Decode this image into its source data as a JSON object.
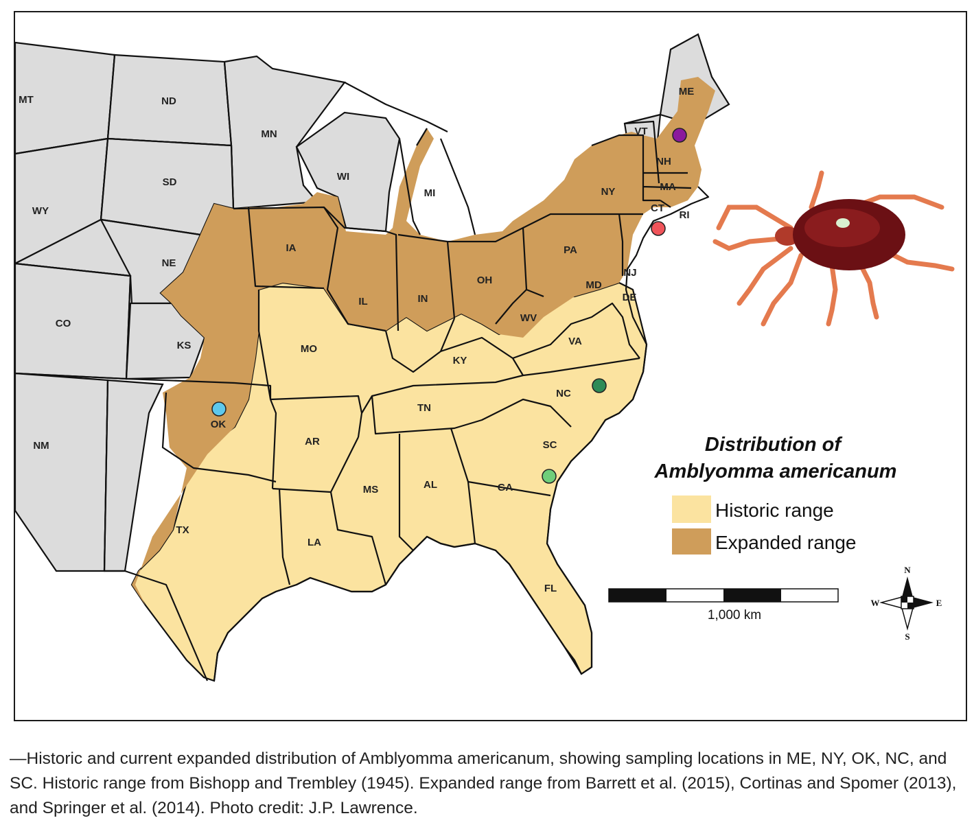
{
  "map": {
    "colors": {
      "water": "#ffffff",
      "unaffected": "#dcdcdc",
      "historic": "#fbe3a0",
      "expanded": "#cf9d5a",
      "border": "#111111"
    },
    "state_labels": {
      "MT": "MT",
      "ND": "ND",
      "MN": "MN",
      "WI": "WI",
      "MI": "MI",
      "ME": "ME",
      "VT": "VT",
      "NH": "NH",
      "MA": "MA",
      "NY": "NY",
      "CT": "CT",
      "RI": "RI",
      "WY": "WY",
      "SD": "SD",
      "IA": "IA",
      "NE": "NE",
      "PA": "PA",
      "NJ": "NJ",
      "IL": "IL",
      "IN": "IN",
      "OH": "OH",
      "MD": "MD",
      "DE": "DE",
      "CO": "CO",
      "KS": "KS",
      "MO": "MO",
      "WV": "WV",
      "KY": "KY",
      "VA": "VA",
      "NC": "NC",
      "TN": "TN",
      "OK": "OK",
      "AR": "AR",
      "SC": "SC",
      "NM": "NM",
      "MS": "MS",
      "AL": "AL",
      "GA": "GA",
      "TX": "TX",
      "LA": "LA",
      "FL": "FL"
    },
    "sampling_sites": [
      {
        "state": "ME",
        "color": "#8b1a9c"
      },
      {
        "state": "NY",
        "color": "#f0545a"
      },
      {
        "state": "OK",
        "color": "#5ec8ec"
      },
      {
        "state": "NC",
        "color": "#2e8b57"
      },
      {
        "state": "SC",
        "color": "#6fce7a"
      }
    ]
  },
  "legend": {
    "title_line1": "Distribution of",
    "title_line2": "Amblyomma americanum",
    "historic_label": "Historic range",
    "expanded_label": "Expanded range"
  },
  "scale_bar": {
    "label": "1,000 km"
  },
  "compass": {
    "n": "N",
    "s": "S",
    "e": "E",
    "w": "W"
  },
  "caption": "—Historic and current expanded distribution of Amblyomma americanum, showing sampling locations in ME, NY, OK, NC, and SC. Historic range from Bishopp and Trembley (1945). Expanded range from Barrett et al. (2015), Cortinas and Spomer (2013), and Springer et al. (2014). Photo credit: J.P. Lawrence."
}
